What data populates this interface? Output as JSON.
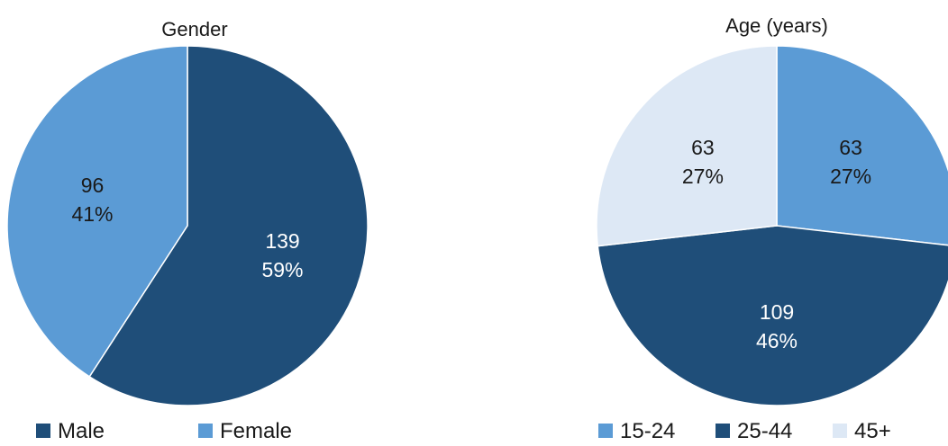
{
  "chart_data": [
    {
      "type": "pie",
      "title": "Gender",
      "slices": [
        {
          "label": "Male",
          "value": 139,
          "percent": "59%",
          "color": "#1f4e79",
          "text_color": "#ffffff"
        },
        {
          "label": "Female",
          "value": 96,
          "percent": "41%",
          "color": "#5b9bd5",
          "text_color": "#1a1a1a"
        }
      ],
      "legend": [
        "Male",
        "Female"
      ],
      "legend_placement": "bottom"
    },
    {
      "type": "pie",
      "title": "Age (years)",
      "slices": [
        {
          "label": "15-24",
          "value": 63,
          "percent": "27%",
          "color": "#5b9bd5",
          "text_color": "#1a1a1a"
        },
        {
          "label": "25-44",
          "value": 109,
          "percent": "46%",
          "color": "#1f4e79",
          "text_color": "#ffffff"
        },
        {
          "label": "45+",
          "value": 63,
          "percent": "27%",
          "color": "#dde8f5",
          "text_color": "#1a1a1a"
        }
      ],
      "legend": [
        "15-24",
        "25-44",
        "45+"
      ],
      "legend_placement": "bottom"
    }
  ]
}
